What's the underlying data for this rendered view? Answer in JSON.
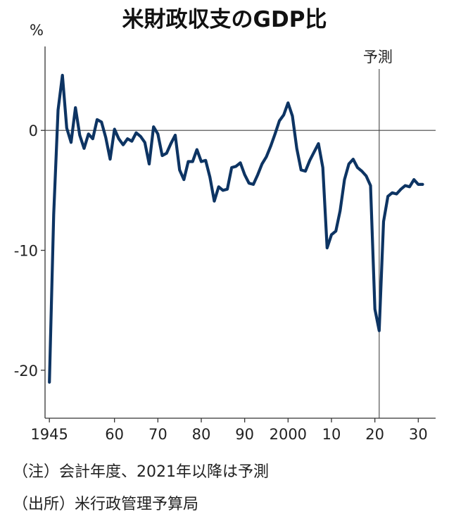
{
  "chart_data": {
    "type": "line",
    "title": "米財政収支のGDP比",
    "ylabel": "%",
    "ylim": [
      -24,
      7
    ],
    "xlim": [
      1944,
      2034
    ],
    "y_ticks": [
      0,
      -10,
      -20
    ],
    "y_tick_labels": [
      "0",
      "-10",
      "-20"
    ],
    "x_ticks": [
      1945,
      1960,
      1970,
      1980,
      1990,
      2000,
      2010,
      2020,
      2030
    ],
    "x_tick_labels": [
      "1945",
      "60",
      "70",
      "80",
      "90",
      "2000",
      "10",
      "20",
      "30"
    ],
    "forecast_start": 2021,
    "forecast_label": "予測",
    "grid": false,
    "zero_line": true,
    "color": "#0d3463",
    "series": [
      {
        "x": [
          1945,
          1946,
          1947,
          1948,
          1949,
          1950,
          1951,
          1952,
          1953,
          1954,
          1955,
          1956,
          1957,
          1958,
          1959,
          1960,
          1961,
          1962,
          1963,
          1964,
          1965,
          1966,
          1967,
          1968,
          1969,
          1970,
          1971,
          1972,
          1973,
          1974,
          1975,
          1976,
          1977,
          1978,
          1979,
          1980,
          1981,
          1982,
          1983,
          1984,
          1985,
          1986,
          1987,
          1988,
          1989,
          1990,
          1991,
          1992,
          1993,
          1994,
          1995,
          1996,
          1997,
          1998,
          1999,
          2000,
          2001,
          2002,
          2003,
          2004,
          2005,
          2006,
          2007,
          2008,
          2009,
          2010,
          2011,
          2012,
          2013,
          2014,
          2015,
          2016,
          2017,
          2018,
          2019,
          2020,
          2021,
          2022,
          2023,
          2024,
          2025,
          2026,
          2027,
          2028,
          2029,
          2030,
          2031
        ],
        "values": [
          -21.0,
          -7.0,
          1.7,
          4.6,
          0.2,
          -1.0,
          1.9,
          -0.4,
          -1.5,
          -0.3,
          -0.7,
          0.9,
          0.7,
          -0.6,
          -2.4,
          0.1,
          -0.7,
          -1.2,
          -0.7,
          -0.9,
          -0.2,
          -0.5,
          -1.0,
          -2.8,
          0.3,
          -0.3,
          -2.1,
          -1.9,
          -1.1,
          -0.4,
          -3.3,
          -4.1,
          -2.6,
          -2.6,
          -1.6,
          -2.6,
          -2.5,
          -3.9,
          -5.9,
          -4.7,
          -5.0,
          -4.9,
          -3.1,
          -3.0,
          -2.7,
          -3.7,
          -4.4,
          -4.5,
          -3.7,
          -2.8,
          -2.2,
          -1.3,
          -0.3,
          0.8,
          1.3,
          2.3,
          1.2,
          -1.5,
          -3.3,
          -3.4,
          -2.5,
          -1.8,
          -1.1,
          -3.1,
          -9.8,
          -8.7,
          -8.4,
          -6.7,
          -4.1,
          -2.8,
          -2.4,
          -3.1,
          -3.4,
          -3.8,
          -4.6,
          -14.9,
          -16.7,
          -7.6,
          -5.5,
          -5.2,
          -5.3,
          -4.9,
          -4.6,
          -4.7,
          -4.1,
          -4.5,
          -4.5
        ]
      }
    ]
  },
  "notes": {
    "note1": "（注）会計年度、2021年以降は予測",
    "note2": "（出所）米行政管理予算局"
  }
}
